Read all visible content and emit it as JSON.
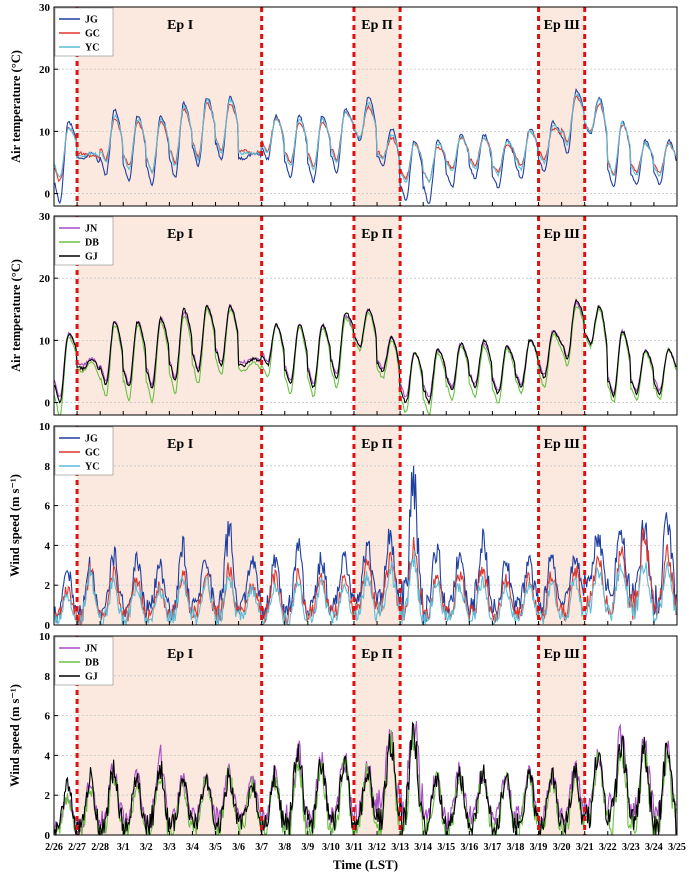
{
  "colors": {
    "JG": "#1f3fa0",
    "GC": "#e0352a",
    "YC": "#5bbcd8",
    "JN": "#a64cc4",
    "DB": "#6cc044",
    "GJ": "#000000",
    "episode_shade": "#fbe9e0",
    "episode_line": "#e01010",
    "grid": "#c8c8c8"
  },
  "x_axis": {
    "label": "Time (LST)",
    "ticks": [
      "2/26",
      "2/27",
      "2/28",
      "3/1",
      "3/2",
      "3/3",
      "3/4",
      "3/5",
      "3/6",
      "3/7",
      "3/8",
      "3/9",
      "3/10",
      "3/11",
      "3/12",
      "3/13",
      "3/14",
      "3/15",
      "3/16",
      "3/17",
      "3/18",
      "3/19",
      "3/20",
      "3/21",
      "3/22",
      "3/23",
      "3/24",
      "3/25"
    ]
  },
  "episodes": [
    {
      "label": "Ep I",
      "start": "2/27",
      "end": "3/7"
    },
    {
      "label": "Ep Π",
      "start": "3/11",
      "end": "3/13"
    },
    {
      "label": "Ep Ш",
      "start": "3/19",
      "end": "3/21"
    }
  ],
  "chart_data": [
    {
      "type": "line",
      "ylabel": "Air temperature (°C)",
      "ylim": [
        -2,
        30
      ],
      "yticks": [
        0,
        10,
        20,
        30
      ],
      "grid": true,
      "legend_position": "top-left",
      "series": [
        {
          "name": "JG",
          "daily_max": [
            11.5,
            6.5,
            13.5,
            12.5,
            12.5,
            14.5,
            15.5,
            15.5,
            6.5,
            12.5,
            12.5,
            12.5,
            13.5,
            15.5,
            10.5,
            8.5,
            8.5,
            9.5,
            9.5,
            8.5,
            10.5,
            11.5,
            16.5,
            15.5,
            11.5,
            8.5,
            8.5,
            9.5
          ],
          "daily_min": [
            -1.5,
            5.5,
            3.0,
            2.0,
            1.5,
            2.5,
            4.5,
            5.5,
            5.5,
            5.5,
            2.5,
            2.0,
            3.5,
            8.5,
            4.5,
            -1.0,
            -1.5,
            1.0,
            2.5,
            1.0,
            2.5,
            3.5,
            6.5,
            9.5,
            1.0,
            1.5,
            1.5,
            1.5
          ]
        },
        {
          "name": "GC",
          "daily_max": [
            10.5,
            6.0,
            12.0,
            11.5,
            11.5,
            13.5,
            14.5,
            14.5,
            6.5,
            12.0,
            11.5,
            11.5,
            13.0,
            14.0,
            9.0,
            8.0,
            7.5,
            9.0,
            9.0,
            8.0,
            10.0,
            10.5,
            15.5,
            14.5,
            11.0,
            8.0,
            8.0,
            9.0
          ],
          "daily_min": [
            2.0,
            6.5,
            5.5,
            4.5,
            3.5,
            5.0,
            6.0,
            7.0,
            7.0,
            7.0,
            5.0,
            4.5,
            5.5,
            9.0,
            6.0,
            2.5,
            2.0,
            4.0,
            4.5,
            3.5,
            4.5,
            5.5,
            8.5,
            10.0,
            3.0,
            3.5,
            3.5,
            3.5
          ]
        },
        {
          "name": "YC",
          "daily_max": [
            10.5,
            6.5,
            12.5,
            12.0,
            12.0,
            14.0,
            15.0,
            15.0,
            6.5,
            12.0,
            12.0,
            12.0,
            13.0,
            14.5,
            9.5,
            8.0,
            8.0,
            9.0,
            9.0,
            8.5,
            10.0,
            11.0,
            16.0,
            15.0,
            11.5,
            8.0,
            8.0,
            9.0
          ],
          "daily_min": [
            2.5,
            6.0,
            5.0,
            4.0,
            3.5,
            4.5,
            5.5,
            6.5,
            6.5,
            6.5,
            4.5,
            4.0,
            5.0,
            9.0,
            5.5,
            2.0,
            2.0,
            3.5,
            4.0,
            3.0,
            4.0,
            5.0,
            8.0,
            10.0,
            3.0,
            3.0,
            3.0,
            3.0
          ]
        }
      ]
    },
    {
      "type": "line",
      "ylabel": "Air temperature (°C)",
      "ylim": [
        -2,
        30
      ],
      "yticks": [
        0,
        10,
        20,
        30
      ],
      "grid": true,
      "legend_position": "top-left",
      "series": [
        {
          "name": "JN",
          "daily_max": [
            11.0,
            7.0,
            13.0,
            13.0,
            13.5,
            14.5,
            15.5,
            15.5,
            7.0,
            12.5,
            12.5,
            12.5,
            14.0,
            15.0,
            10.5,
            8.0,
            8.5,
            9.5,
            9.5,
            9.0,
            10.0,
            11.5,
            16.0,
            15.5,
            11.5,
            8.5,
            8.5,
            9.5
          ],
          "daily_min": [
            1.0,
            6.0,
            3.5,
            3.0,
            3.0,
            4.0,
            5.5,
            6.5,
            6.5,
            6.5,
            3.5,
            3.0,
            4.5,
            9.0,
            5.5,
            1.0,
            1.0,
            2.5,
            3.0,
            2.0,
            3.0,
            4.5,
            7.5,
            9.5,
            1.5,
            2.0,
            2.0,
            2.0
          ]
        },
        {
          "name": "DB",
          "daily_max": [
            10.5,
            6.5,
            12.5,
            12.5,
            13.0,
            14.0,
            15.0,
            15.0,
            6.5,
            12.5,
            12.0,
            12.0,
            13.5,
            14.5,
            10.0,
            8.0,
            8.0,
            9.0,
            9.0,
            8.5,
            10.0,
            11.0,
            15.5,
            15.0,
            11.0,
            8.0,
            8.5,
            9.5
          ],
          "daily_min": [
            -2.0,
            5.0,
            1.0,
            0.5,
            0.0,
            1.5,
            3.0,
            4.5,
            5.0,
            4.0,
            1.5,
            1.0,
            2.5,
            8.5,
            4.0,
            -1.5,
            -2.0,
            0.5,
            1.0,
            0.0,
            1.5,
            2.5,
            6.0,
            9.0,
            0.0,
            0.5,
            0.5,
            0.5
          ]
        },
        {
          "name": "GJ",
          "daily_max": [
            11.0,
            7.0,
            13.0,
            13.0,
            13.5,
            15.0,
            15.5,
            15.5,
            7.0,
            12.5,
            12.5,
            12.5,
            14.5,
            15.0,
            10.5,
            8.0,
            8.5,
            9.5,
            10.0,
            9.0,
            10.0,
            11.5,
            16.5,
            15.5,
            11.5,
            8.5,
            8.5,
            9.5
          ],
          "daily_min": [
            0.0,
            5.5,
            3.0,
            2.5,
            2.5,
            3.5,
            5.0,
            6.0,
            6.0,
            6.0,
            3.0,
            2.5,
            4.0,
            9.0,
            5.0,
            0.0,
            0.0,
            2.0,
            2.5,
            1.5,
            2.5,
            4.0,
            7.0,
            9.5,
            1.0,
            1.5,
            1.5,
            1.5
          ]
        }
      ]
    },
    {
      "type": "line",
      "ylabel": "Wind speed (m s⁻¹)",
      "ylim": [
        0,
        10
      ],
      "yticks": [
        0,
        2,
        4,
        6,
        8,
        10
      ],
      "grid": true,
      "legend_position": "top-left",
      "series": [
        {
          "name": "JG",
          "daily_max": [
            2.8,
            3.0,
            3.5,
            3.4,
            3.0,
            3.8,
            3.2,
            4.7,
            3.3,
            3.2,
            3.8,
            3.3,
            3.5,
            4.0,
            4.5,
            7.0,
            3.8,
            3.5,
            4.3,
            3.2,
            3.4,
            3.5,
            3.5,
            4.5,
            5.0,
            5.0,
            5.2,
            4.0
          ],
          "daily_min": [
            0.6,
            0.4,
            0.8,
            0.7,
            0.8,
            0.7,
            1.0,
            0.8,
            1.0,
            0.8,
            0.7,
            0.9,
            1.0,
            1.2,
            1.5,
            1.2,
            0.8,
            1.0,
            1.0,
            0.8,
            1.0,
            0.9,
            1.0,
            2.0,
            1.5,
            1.5,
            1.2,
            1.0
          ]
        },
        {
          "name": "GC",
          "daily_max": [
            1.8,
            2.8,
            2.5,
            2.3,
            2.0,
            2.5,
            2.4,
            2.8,
            2.0,
            2.5,
            2.5,
            2.3,
            2.4,
            3.0,
            3.2,
            3.8,
            2.5,
            2.5,
            2.8,
            2.2,
            2.3,
            2.5,
            2.8,
            3.3,
            3.5,
            4.5,
            3.5,
            3.2
          ],
          "daily_min": [
            0.5,
            0.3,
            0.5,
            0.5,
            0.5,
            0.6,
            0.6,
            0.5,
            0.7,
            0.5,
            0.5,
            0.6,
            0.6,
            0.8,
            1.0,
            0.8,
            0.5,
            0.6,
            0.6,
            0.5,
            0.6,
            0.5,
            0.6,
            1.2,
            1.0,
            1.0,
            0.8,
            0.7
          ]
        },
        {
          "name": "YC",
          "daily_max": [
            1.5,
            2.5,
            2.2,
            2.0,
            1.8,
            2.2,
            2.2,
            2.5,
            1.8,
            2.0,
            2.2,
            2.0,
            2.0,
            2.5,
            2.8,
            3.2,
            2.2,
            2.0,
            2.3,
            1.8,
            2.0,
            2.0,
            2.2,
            2.8,
            3.0,
            3.0,
            3.0,
            2.5
          ],
          "daily_min": [
            0.3,
            0.2,
            0.3,
            0.3,
            0.3,
            0.4,
            0.4,
            0.3,
            0.5,
            0.3,
            0.3,
            0.4,
            0.4,
            0.5,
            0.7,
            0.5,
            0.3,
            0.4,
            0.4,
            0.3,
            0.4,
            0.3,
            0.4,
            0.8,
            0.7,
            0.7,
            0.5,
            0.5
          ]
        }
      ]
    },
    {
      "type": "line",
      "ylabel": "Wind speed (m s⁻¹)",
      "ylim": [
        0,
        10
      ],
      "yticks": [
        0,
        2,
        4,
        6,
        8,
        10
      ],
      "grid": true,
      "legend_position": "top-left",
      "series": [
        {
          "name": "JN",
          "daily_max": [
            2.0,
            2.8,
            3.3,
            3.0,
            4.0,
            2.8,
            3.0,
            3.2,
            2.8,
            3.0,
            4.2,
            3.8,
            3.8,
            3.5,
            5.0,
            5.8,
            3.0,
            3.2,
            3.2,
            3.0,
            3.2,
            3.0,
            3.3,
            4.0,
            5.2,
            4.5,
            4.3,
            4.2
          ],
          "daily_min": [
            0.5,
            0.3,
            0.8,
            0.7,
            0.9,
            0.8,
            1.0,
            0.9,
            1.0,
            0.8,
            0.8,
            0.9,
            1.0,
            1.0,
            1.5,
            1.5,
            0.8,
            0.8,
            1.0,
            0.8,
            1.0,
            0.8,
            1.0,
            1.5,
            1.5,
            1.2,
            1.2,
            1.0
          ]
        },
        {
          "name": "DB",
          "daily_max": [
            1.8,
            2.5,
            3.0,
            2.5,
            3.2,
            2.5,
            2.8,
            3.0,
            2.5,
            2.8,
            3.8,
            3.3,
            3.5,
            3.2,
            4.5,
            5.0,
            2.8,
            2.8,
            3.0,
            2.8,
            3.0,
            2.8,
            3.0,
            3.8,
            4.5,
            4.0,
            4.0,
            4.0
          ],
          "daily_min": [
            0.2,
            0.1,
            0.3,
            0.2,
            0.3,
            0.3,
            0.4,
            0.3,
            0.4,
            0.2,
            0.3,
            0.3,
            0.4,
            0.4,
            0.6,
            0.5,
            0.2,
            0.3,
            0.4,
            0.2,
            0.3,
            0.2,
            0.3,
            0.6,
            0.5,
            0.5,
            0.4,
            0.4
          ]
        },
        {
          "name": "GJ",
          "daily_max": [
            2.5,
            3.0,
            3.2,
            2.8,
            3.5,
            2.8,
            3.0,
            3.0,
            2.6,
            3.0,
            4.2,
            3.5,
            3.5,
            3.2,
            4.8,
            5.0,
            2.8,
            3.0,
            3.2,
            3.0,
            3.2,
            3.0,
            3.2,
            4.0,
            4.8,
            4.2,
            4.3,
            4.0
          ],
          "daily_min": [
            0.3,
            0.2,
            0.5,
            0.4,
            0.5,
            0.5,
            0.6,
            0.5,
            0.6,
            0.4,
            0.5,
            0.5,
            0.6,
            0.6,
            0.8,
            0.8,
            0.4,
            0.5,
            0.6,
            0.4,
            0.5,
            0.4,
            0.5,
            0.8,
            0.8,
            0.7,
            0.6,
            0.6
          ]
        }
      ]
    }
  ]
}
